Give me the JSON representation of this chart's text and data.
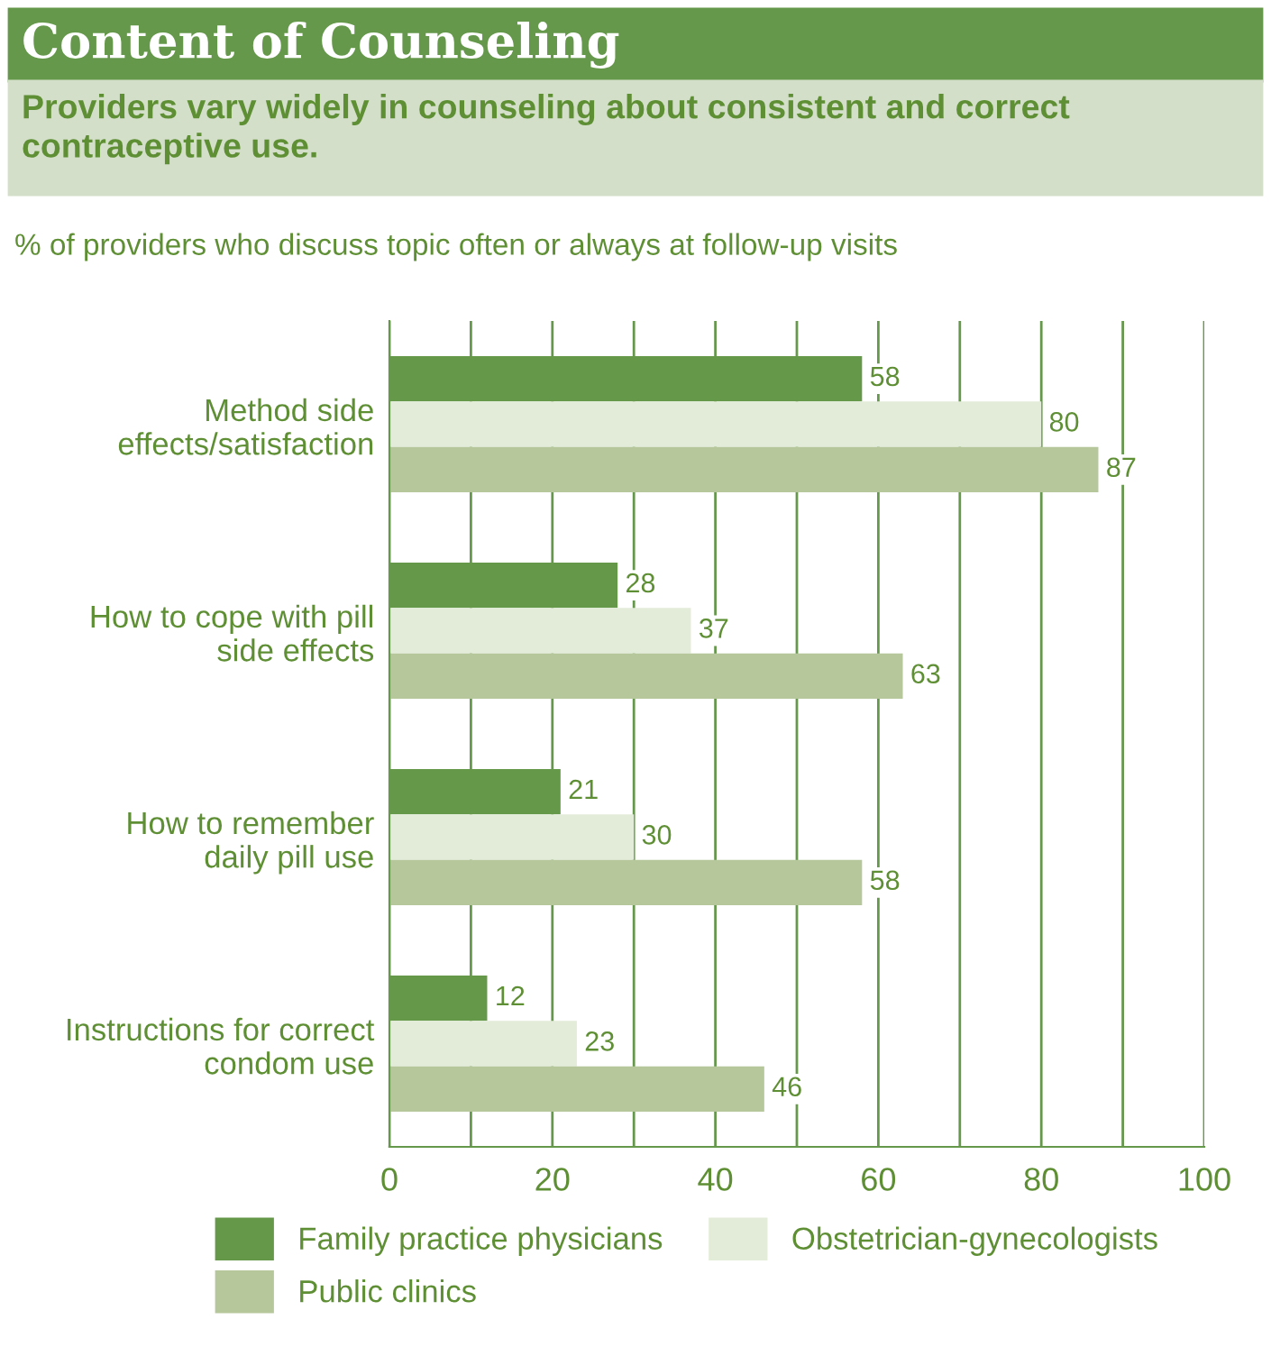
{
  "chart_data": {
    "type": "bar",
    "orientation": "horizontal",
    "title": "Content of Counseling",
    "subtitle": "Providers vary widely in counseling about consistent and correct contraceptive use.",
    "annotations": [
      "% of providers who discuss topic often or always at follow-up visits"
    ],
    "categories": [
      "Method side\neffects/satisfaction",
      "How to cope with pill\nside effects",
      "How to remember\ndaily pill use",
      "Instructions for correct\ncondom use"
    ],
    "series": [
      {
        "name": "Family practice physicians",
        "color": "#66984a",
        "values": [
          58,
          28,
          21,
          12
        ]
      },
      {
        "name": "Obstetrician-gynecologists",
        "color": "#e3ecd8",
        "values": [
          80,
          37,
          30,
          23
        ]
      },
      {
        "name": "Public clinics",
        "color": "#b5c79b",
        "values": [
          87,
          63,
          58,
          46
        ]
      }
    ],
    "xlim": [
      0,
      100
    ],
    "xticks": [
      0,
      {
        "value": 10,
        "label": null
      },
      20,
      {
        "value": 30,
        "label": null
      },
      40,
      {
        "value": 50,
        "label": null
      },
      60,
      {
        "value": 70,
        "label": null
      },
      80,
      {
        "value": 90,
        "label": null
      },
      100
    ],
    "grid": "x",
    "legend": "bottom",
    "data_labels": true
  }
}
